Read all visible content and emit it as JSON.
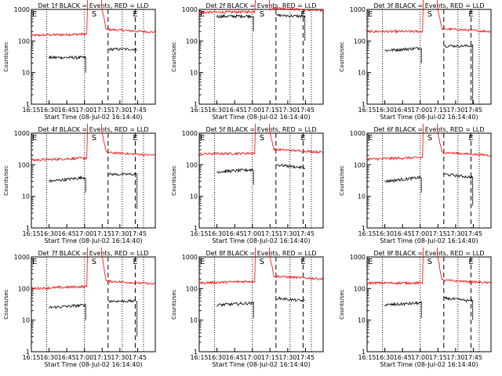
{
  "chart_data": [
    {
      "title": "Det 1f BLACK = Events, RED = LLD",
      "type": "line",
      "xlabel": "Start Time (08-Jul-02 16:14:40)",
      "ylabel": "Counts/sec",
      "red": {
        "start": 150,
        "end": 190,
        "hi": 1000
      },
      "black": {
        "start": 30,
        "gap_end": 30,
        "after_start": 55,
        "after_end": 55,
        "dip": null
      }
    },
    {
      "title": "Det 2f BLACK = Events, RED = LLD",
      "type": "line",
      "xlabel": "Start Time (08-Jul-02 16:14:40)",
      "ylabel": "Counts/sec",
      "red": {
        "start": 800,
        "end": 900,
        "hi": 1000
      },
      "black": {
        "start": 600,
        "gap_end": 620,
        "after_start": 650,
        "after_end": 600,
        "dip": 100
      }
    },
    {
      "title": "Det 3f BLACK = Events, RED = LLD",
      "type": "line",
      "xlabel": "Start Time (08-Jul-02 16:14:40)",
      "ylabel": "Counts/sec",
      "red": {
        "start": 200,
        "end": 200,
        "hi": 1000
      },
      "black": {
        "start": 50,
        "gap_end": 60,
        "after_start": 70,
        "after_end": 70,
        "dip": 1
      }
    },
    {
      "title": "Det 4f BLACK = Events, RED = LLD",
      "type": "line",
      "xlabel": "Start Time (08-Jul-02 16:14:40)",
      "ylabel": "Counts/sec",
      "red": {
        "start": 140,
        "end": 200,
        "hi": 1000
      },
      "black": {
        "start": 30,
        "gap_end": 40,
        "after_start": 50,
        "after_end": 50,
        "dip": 4
      }
    },
    {
      "title": "Det 5f BLACK = Events, RED = LLD",
      "type": "line",
      "xlabel": "Start Time (08-Jul-02 16:14:40)",
      "ylabel": "Counts/sec",
      "red": {
        "start": 220,
        "end": 250,
        "hi": 1000
      },
      "black": {
        "start": 60,
        "gap_end": 70,
        "after_start": 100,
        "after_end": 80,
        "dip": null
      }
    },
    {
      "title": "Det 6f BLACK = Events, RED = LLD",
      "type": "line",
      "xlabel": "Start Time (08-Jul-02 16:14:40)",
      "ylabel": "Counts/sec",
      "red": {
        "start": 150,
        "end": 200,
        "hi": 1000
      },
      "black": {
        "start": 30,
        "gap_end": 40,
        "after_start": 50,
        "after_end": 40,
        "dip": 5
      }
    },
    {
      "title": "Det 7f BLACK = Events, RED = LLD",
      "type": "line",
      "xlabel": "Start Time (08-Jul-02 16:14:40)",
      "ylabel": "Counts/sec",
      "red": {
        "start": 100,
        "end": 140,
        "hi": 1000
      },
      "black": {
        "start": 25,
        "gap_end": 30,
        "after_start": 40,
        "after_end": 40,
        "dip": 3
      }
    },
    {
      "title": "Det 8f BLACK = Events, RED = LLD",
      "type": "line",
      "xlabel": "Start Time (08-Jul-02 16:14:40)",
      "ylabel": "Counts/sec",
      "red": {
        "start": 150,
        "end": 200,
        "hi": 1000
      },
      "black": {
        "start": 30,
        "gap_end": 35,
        "after_start": 50,
        "after_end": 40,
        "dip": null
      }
    },
    {
      "title": "Det 9f BLACK = Events, RED = LLD",
      "type": "line",
      "xlabel": "Start Time (08-Jul-02 16:14:40)",
      "ylabel": "Counts/sec",
      "red": {
        "start": 150,
        "end": 150,
        "hi": 1000
      },
      "black": {
        "start": 30,
        "gap_end": 35,
        "after_start": 50,
        "after_end": 40,
        "dip": 10
      }
    }
  ],
  "common": {
    "xticks": [
      "16:15",
      "16:30",
      "16:45",
      "17:00",
      "17:15",
      "17:30",
      "17:45"
    ],
    "yticks": [
      "1",
      "10",
      "100",
      "1000"
    ],
    "ylim": [
      1,
      1000
    ],
    "x_range_minutes": [
      0,
      105
    ],
    "marker_S": "S",
    "marker_E": "E",
    "saa_start_min": 47,
    "saa_end_min": 60,
    "dotted_min": [
      13,
      45,
      77,
      95
    ],
    "dashed_min": [
      65,
      88
    ]
  },
  "colors": {
    "red": "#ff0000",
    "black": "#000000",
    "frame": "#000000"
  }
}
